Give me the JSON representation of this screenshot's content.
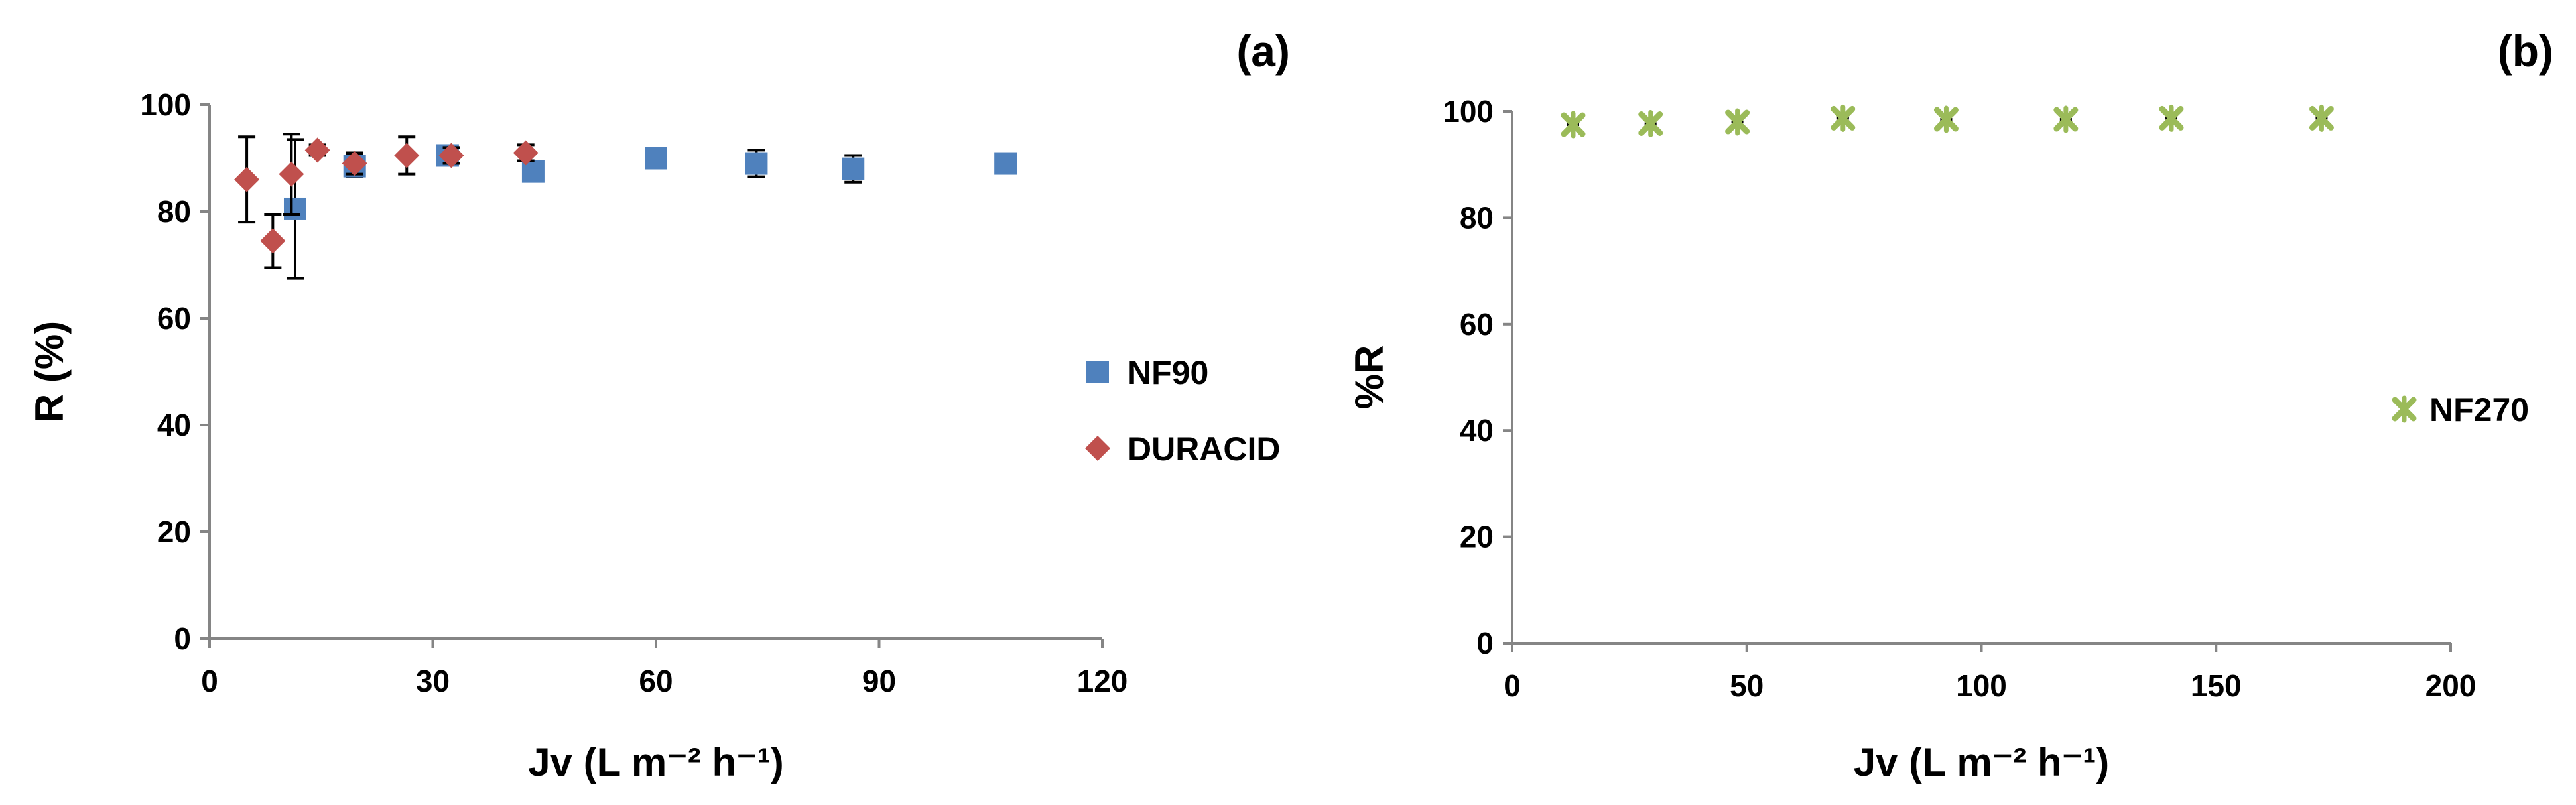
{
  "chart_data": [
    {
      "type": "scatter",
      "panel_label": "(a)",
      "xlabel": "Jv (L m⁻² h⁻¹)",
      "ylabel": "R (%)",
      "xlim": [
        0,
        120
      ],
      "ylim": [
        0,
        100
      ],
      "xticks": [
        "0",
        "30",
        "60",
        "90",
        "120"
      ],
      "yticks": [
        "0",
        "20",
        "40",
        "60",
        "80",
        "100"
      ],
      "legend_position": "right",
      "series": [
        {
          "name": "NF90",
          "marker": "square",
          "color": "#4F81BD",
          "points": [
            {
              "x": 11.5,
              "y": 80.5,
              "err": 13
            },
            {
              "x": 19.5,
              "y": 88.5,
              "err": 2
            },
            {
              "x": 32,
              "y": 90.5,
              "err": 1
            },
            {
              "x": 43.5,
              "y": 87.5,
              "err": 1
            },
            {
              "x": 60,
              "y": 90,
              "err": 1
            },
            {
              "x": 73.5,
              "y": 89,
              "err": 2.5
            },
            {
              "x": 86.5,
              "y": 88,
              "err": 2.5
            },
            {
              "x": 107,
              "y": 89,
              "err": 1
            }
          ]
        },
        {
          "name": "DURACID",
          "marker": "diamond",
          "color": "#C0504D",
          "points": [
            {
              "x": 5,
              "y": 86,
              "err": 8
            },
            {
              "x": 8.5,
              "y": 74.5,
              "err": 5
            },
            {
              "x": 11,
              "y": 87,
              "err": 7.5
            },
            {
              "x": 14.5,
              "y": 91.5,
              "err": 1
            },
            {
              "x": 19.5,
              "y": 89,
              "err": 2
            },
            {
              "x": 26.5,
              "y": 90.5,
              "err": 3.5
            },
            {
              "x": 32.5,
              "y": 90.5,
              "err": 1.5
            },
            {
              "x": 42.5,
              "y": 91,
              "err": 1.5
            }
          ]
        }
      ]
    },
    {
      "type": "scatter",
      "panel_label": "(b)",
      "xlabel": "Jv (L m⁻² h⁻¹)",
      "ylabel": "%R",
      "xlim": [
        0,
        200
      ],
      "ylim": [
        0,
        100
      ],
      "xticks": [
        "0",
        "50",
        "100",
        "150",
        "200"
      ],
      "yticks": [
        "0",
        "20",
        "40",
        "60",
        "80",
        "100"
      ],
      "legend_position": "right",
      "series": [
        {
          "name": "NF270",
          "marker": "star-x",
          "color": "#9BBB59",
          "points": [
            {
              "x": 13,
              "y": 97.5,
              "err": 0.5
            },
            {
              "x": 29.5,
              "y": 97.7,
              "err": 0.5
            },
            {
              "x": 48,
              "y": 98,
              "err": 0.5
            },
            {
              "x": 70.5,
              "y": 98.7,
              "err": 0.5
            },
            {
              "x": 92.5,
              "y": 98.5,
              "err": 0.5
            },
            {
              "x": 118,
              "y": 98.5,
              "err": 0.5
            },
            {
              "x": 140.5,
              "y": 98.7,
              "err": 0.5
            },
            {
              "x": 172.5,
              "y": 98.7,
              "err": 0.5
            }
          ]
        }
      ]
    }
  ]
}
